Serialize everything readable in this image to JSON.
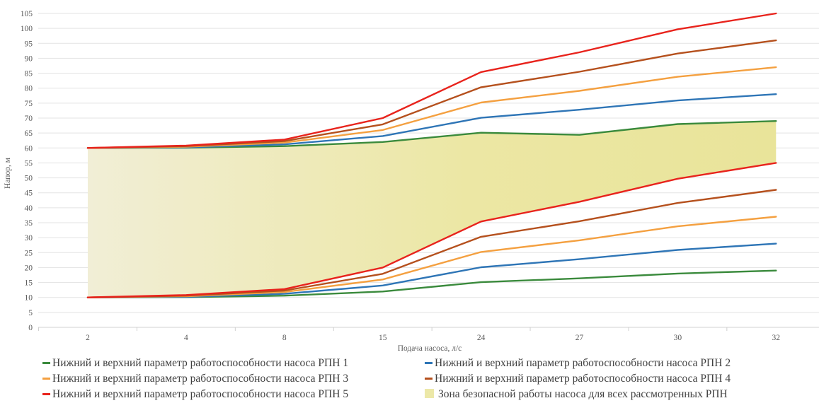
{
  "chart_data": {
    "type": "line",
    "xlabel": "Подача насоса, л/с",
    "ylabel": "Напор, м",
    "categories": [
      "2",
      "4",
      "8",
      "15",
      "24",
      "27",
      "30",
      "32"
    ],
    "ylim": [
      0,
      105
    ],
    "yticks": [
      0,
      5,
      10,
      15,
      20,
      25,
      30,
      35,
      40,
      45,
      50,
      55,
      60,
      65,
      70,
      75,
      80,
      85,
      90,
      95,
      100,
      105
    ],
    "grid": "horizontal",
    "legend_position": "bottom",
    "series": [
      {
        "name": "Нижний  и верхний параметр работоспособности насоса РПН 1",
        "color": "#3a8a3c",
        "upper": [
          60,
          60.1,
          60.6,
          62,
          65.1,
          64.4,
          68,
          69
        ],
        "lower": [
          10,
          10.1,
          10.6,
          12,
          15.1,
          16.4,
          18,
          19
        ]
      },
      {
        "name": "Нижний и верхний параметр работоспособности насоса РПН 2",
        "color": "#2e75b6",
        "upper": [
          60,
          60.2,
          61.2,
          64,
          70.1,
          72.8,
          75.9,
          78
        ],
        "lower": [
          10,
          10.2,
          11.2,
          14,
          20.1,
          22.8,
          25.9,
          28
        ]
      },
      {
        "name": "Нижний  и верхний параметр работоспособности насоса РПН 3",
        "color": "#f4a040",
        "upper": [
          60,
          60.4,
          61.8,
          66,
          75.2,
          79.1,
          83.8,
          87
        ],
        "lower": [
          10,
          10.4,
          11.8,
          16,
          25.2,
          29.1,
          33.8,
          37
        ]
      },
      {
        "name": "Нижний и верхний параметр работоспособности насоса РПН 4",
        "color": "#b5501d",
        "upper": [
          60,
          60.6,
          62.3,
          67.9,
          80.3,
          85.5,
          91.6,
          96
        ],
        "lower": [
          10,
          10.6,
          12.3,
          17.9,
          30.3,
          35.5,
          41.6,
          46
        ]
      },
      {
        "name": "Нижний  и верхний параметр работоспособности насоса РПН 5",
        "color": "#e8231c",
        "upper": [
          60,
          60.8,
          62.8,
          70,
          85.4,
          92,
          99.7,
          105
        ],
        "lower": [
          10,
          10.8,
          12.8,
          20,
          35.4,
          42,
          49.7,
          55
        ]
      }
    ],
    "area": {
      "name": "Зона безопасной работы насоса для всех рассмотренных РПН",
      "color": "#ede8a8",
      "upper": [
        60,
        60.1,
        60.6,
        62,
        65.1,
        64.4,
        68,
        69
      ],
      "lower": [
        10,
        10.8,
        12.8,
        20,
        35.4,
        42,
        49.7,
        55
      ]
    }
  }
}
